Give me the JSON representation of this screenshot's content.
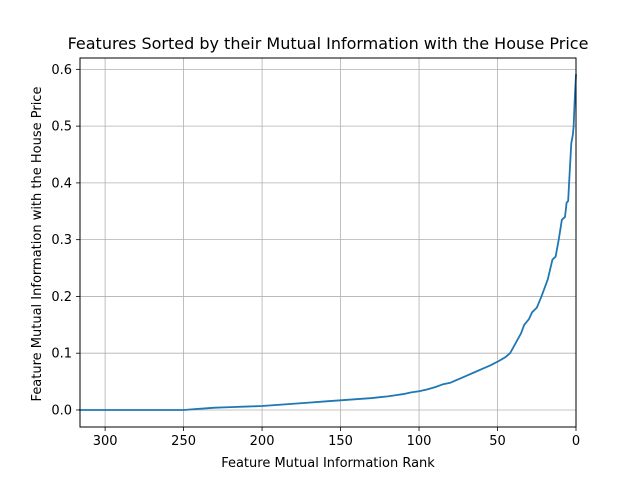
{
  "chart_data": {
    "type": "line",
    "title": "Features Sorted by their Mutual Information with the House Price",
    "xlabel": "Feature Mutual Information Rank",
    "ylabel": "Feature Mutual Information with the House Price",
    "xlim": [
      316,
      0
    ],
    "ylim": [
      -0.03,
      0.62
    ],
    "x_inverted": true,
    "grid": true,
    "x_ticks": [
      300,
      250,
      200,
      150,
      100,
      50,
      0
    ],
    "y_ticks": [
      0.0,
      0.1,
      0.2,
      0.3,
      0.4,
      0.5,
      0.6
    ],
    "x_tick_labels": [
      "300",
      "250",
      "200",
      "150",
      "100",
      "50",
      "0"
    ],
    "y_tick_labels": [
      "0.0",
      "0.1",
      "0.2",
      "0.3",
      "0.4",
      "0.5",
      "0.6"
    ],
    "series": [
      {
        "color": "#1f77b4",
        "x": [
          316,
          300,
          275,
          250,
          245,
          240,
          230,
          220,
          210,
          200,
          190,
          180,
          170,
          160,
          150,
          140,
          130,
          120,
          115,
          110,
          105,
          100,
          95,
          90,
          85,
          80,
          75,
          70,
          65,
          60,
          55,
          50,
          45,
          42,
          40,
          38,
          35,
          33,
          30,
          28,
          25,
          22,
          20,
          18,
          15,
          13,
          11,
          9,
          7,
          6,
          5,
          4,
          3,
          2,
          1.5,
          1,
          0.5,
          0
        ],
        "y": [
          0.0,
          0.0,
          0.0,
          0.0,
          0.001,
          0.002,
          0.004,
          0.005,
          0.006,
          0.007,
          0.009,
          0.011,
          0.013,
          0.015,
          0.017,
          0.019,
          0.021,
          0.024,
          0.026,
          0.028,
          0.031,
          0.033,
          0.036,
          0.04,
          0.045,
          0.048,
          0.054,
          0.06,
          0.066,
          0.072,
          0.078,
          0.085,
          0.093,
          0.1,
          0.11,
          0.12,
          0.135,
          0.15,
          0.16,
          0.172,
          0.18,
          0.2,
          0.215,
          0.23,
          0.265,
          0.27,
          0.3,
          0.335,
          0.34,
          0.365,
          0.368,
          0.42,
          0.47,
          0.485,
          0.5,
          0.535,
          0.565,
          0.59
        ]
      }
    ]
  }
}
